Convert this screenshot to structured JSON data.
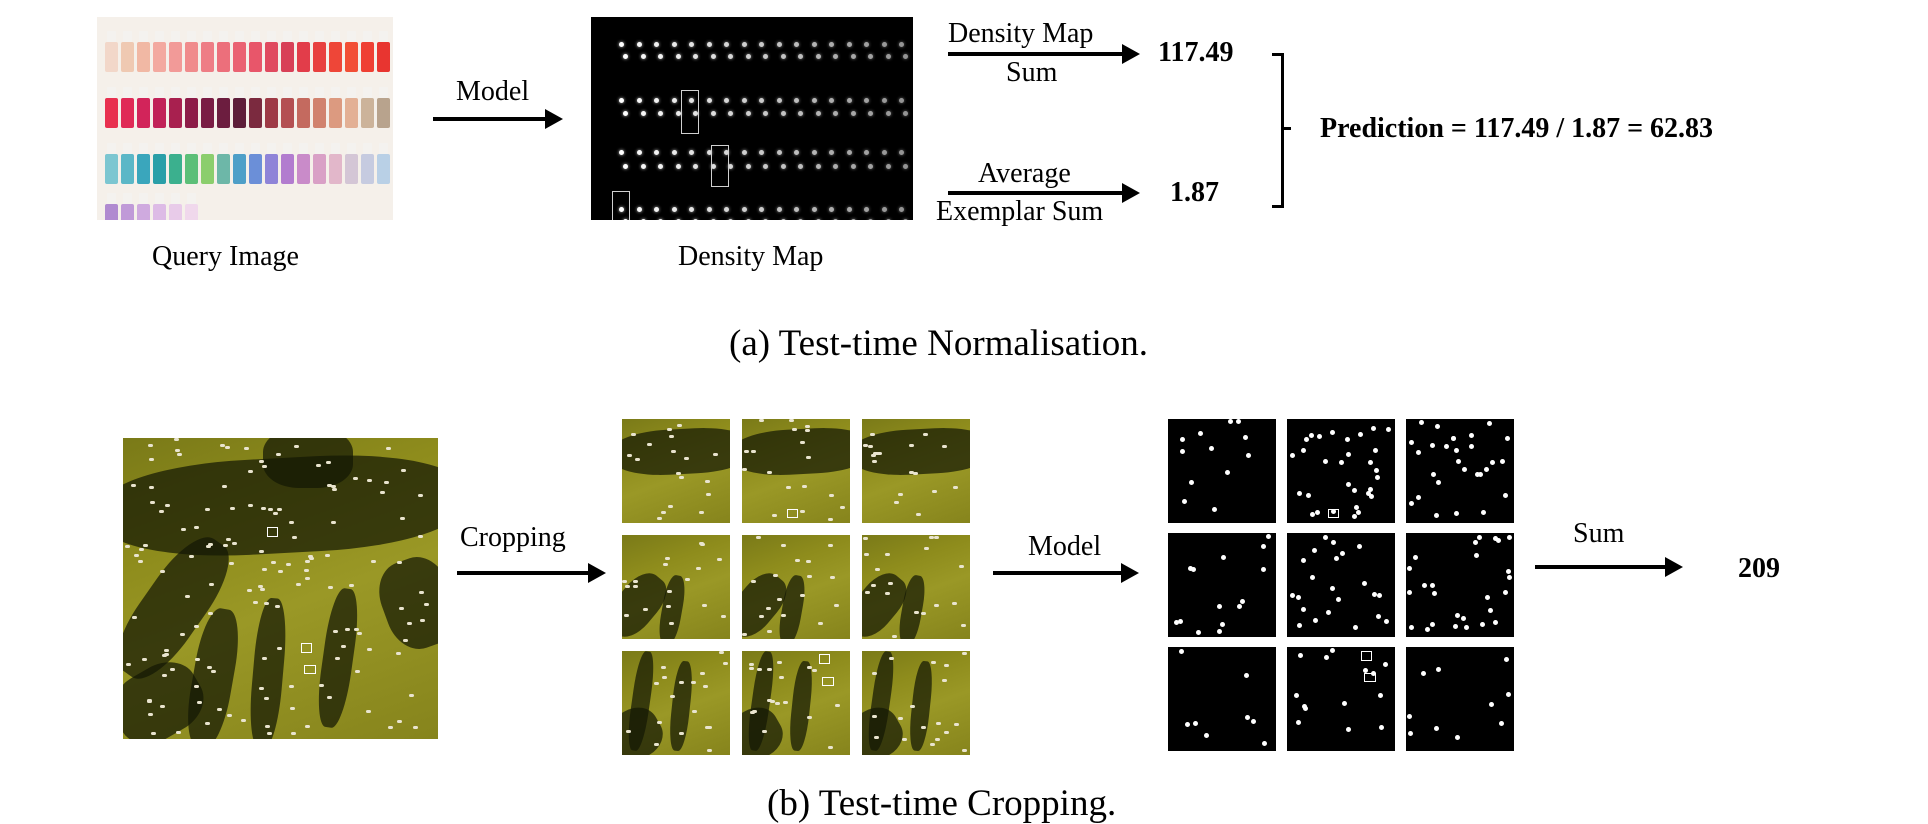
{
  "top": {
    "query_label": "Query Image",
    "model_label": "Model",
    "density_label": "Density Map",
    "sum_label_line1": "Density Map",
    "sum_label_line2": "Sum",
    "sum_value": "117.49",
    "avg_label_line1": "Average",
    "avg_label_line2": "Exemplar Sum",
    "avg_value": "1.87",
    "prediction": "Prediction = 117.49 / 1.87  = 62.83",
    "caption": "(a)  Test-time Normalisation."
  },
  "bottom": {
    "cropping_label": "Cropping",
    "model_label": "Model",
    "sum_label": "Sum",
    "result": "209",
    "caption": "(b)  Test-time Cropping."
  },
  "colors": {
    "polish_row1": [
      "#f2d7c9",
      "#efc9b2",
      "#f1b8a4",
      "#f3a9a0",
      "#f29a98",
      "#f08b8c",
      "#ee7d85",
      "#ec6f7b",
      "#ea6272",
      "#e8566a",
      "#e04a5f",
      "#d84057",
      "#e23d4a",
      "#e8403f",
      "#ee4638",
      "#f24e35",
      "#ef3f33",
      "#e83530"
    ],
    "polish_row2": [
      "#e8304f",
      "#e02a56",
      "#d2245a",
      "#c12258",
      "#a8204f",
      "#8d1c48",
      "#7a1c44",
      "#6c1d3f",
      "#5e1e3a",
      "#7b2a3f",
      "#9e3a46",
      "#b45052",
      "#c46a5f",
      "#d1826e",
      "#dc9a80",
      "#e3b095",
      "#ccb39a",
      "#b8a38d"
    ],
    "polish_row3": [
      "#7cc6d1",
      "#5bb7c7",
      "#3aa6bc",
      "#2a9fa8",
      "#3bb08e",
      "#5cbf78",
      "#8bce6d",
      "#6db7a8",
      "#4e9fc8",
      "#6b8fd8",
      "#8f84d8",
      "#b27ccf",
      "#c98bc9",
      "#d9a0c6",
      "#e2b7ca",
      "#d4c6d6",
      "#c6cbe0",
      "#b9d0e6"
    ],
    "polish_row4": [
      "#b08ad0",
      "#c09ad8",
      "#cfaadf",
      "#ddbbe6",
      "#e8cbe9",
      "#f0d8ec"
    ],
    "field": "#8e8c1c",
    "shadow": "#14180a"
  }
}
